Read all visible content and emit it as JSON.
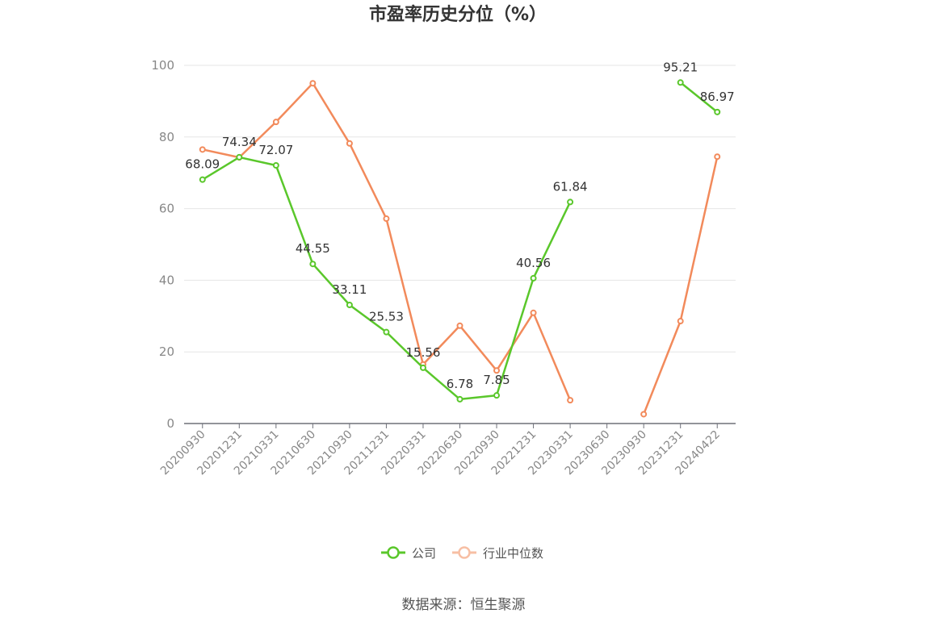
{
  "chart_data": {
    "type": "line",
    "title": "市盈率历史分位（%）",
    "xlabel": "",
    "ylabel": "",
    "ylim": [
      0,
      100
    ],
    "yticks": [
      0,
      20,
      40,
      60,
      80,
      100
    ],
    "categories": [
      "20200930",
      "20201231",
      "20210331",
      "20210630",
      "20210930",
      "20211231",
      "20220331",
      "20220630",
      "20220930",
      "20221231",
      "20230331",
      "20230630",
      "20230930",
      "20231231",
      "20240422"
    ],
    "series": [
      {
        "name": "公司",
        "color": "#5ac72b",
        "values": [
          68.09,
          74.34,
          72.07,
          44.55,
          33.11,
          25.53,
          15.56,
          6.78,
          7.85,
          40.56,
          61.84,
          null,
          null,
          95.21,
          86.97
        ],
        "labels": [
          "68.09",
          "74.34",
          "72.07",
          "44.55",
          "33.11",
          "25.53",
          "15.56",
          "6.78",
          "7.85",
          "40.56",
          "61.84",
          null,
          null,
          "95.21",
          "86.97"
        ]
      },
      {
        "name": "行业中位数",
        "color": "#f28a5b",
        "values": [
          76.5,
          74.3,
          84.2,
          95.0,
          78.2,
          57.2,
          16.5,
          27.3,
          14.8,
          30.9,
          6.5,
          null,
          2.6,
          28.6,
          74.5
        ]
      }
    ],
    "legend": {
      "position": "bottom"
    },
    "grid": true
  },
  "source": "数据来源：恒生聚源"
}
